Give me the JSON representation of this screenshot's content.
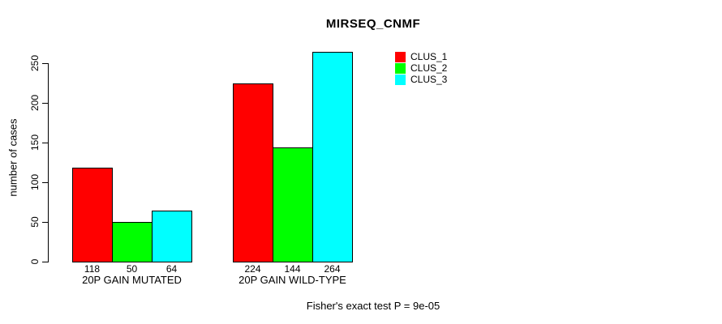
{
  "chart_data": {
    "type": "bar",
    "title": "MIRSEQ_CNMF",
    "ylabel": "number of cases",
    "xlabel": "",
    "ylim": [
      0,
      250
    ],
    "yticks": [
      0,
      50,
      100,
      150,
      200,
      250
    ],
    "grid": false,
    "legend_position": "top-right",
    "categories": [
      "20P GAIN MUTATED",
      "20P GAIN WILD-TYPE"
    ],
    "series": [
      {
        "name": "CLUS_1",
        "color": "#ff0000",
        "values": [
          118,
          224
        ]
      },
      {
        "name": "CLUS_2",
        "color": "#00ff00",
        "values": [
          50,
          144
        ]
      },
      {
        "name": "CLUS_3",
        "color": "#00ffff",
        "values": [
          64,
          264
        ]
      }
    ],
    "bar_value_labels": [
      [
        118,
        50,
        64
      ],
      [
        224,
        144,
        264
      ]
    ],
    "footer": "Fisher's exact test P = 9e-05"
  }
}
